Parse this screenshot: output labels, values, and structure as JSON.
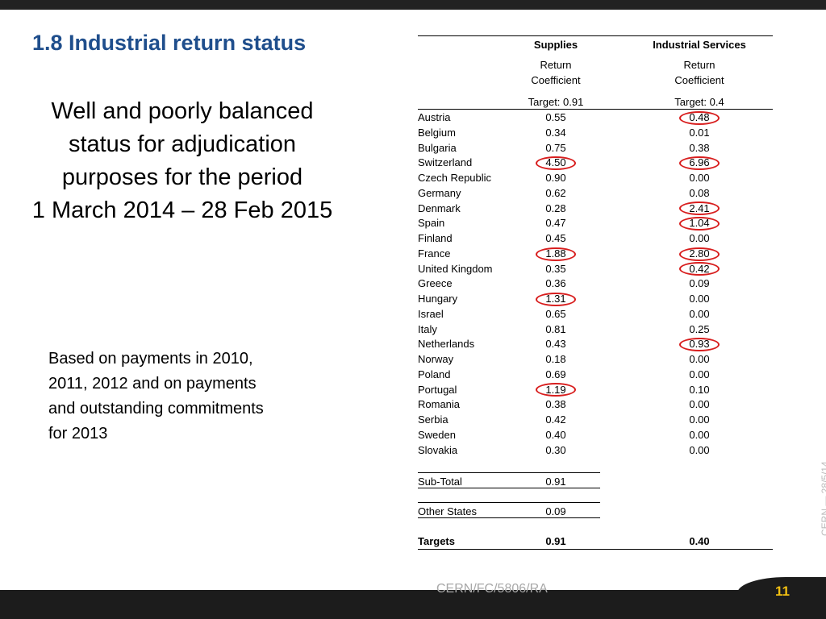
{
  "slide": {
    "title": "1.8 Industrial return status",
    "subtitle_lines": [
      "Well and poorly balanced",
      "status for adjudication",
      "purposes for the period",
      "1 March 2014 – 28 Feb 2015"
    ],
    "note_lines": [
      "Based on payments in 2010,",
      "2011, 2012 and on payments",
      "and outstanding commitments",
      "for 2013"
    ],
    "footer_code": "CERN/FC/5806/RA",
    "page_number": "11",
    "side_text": "CERN — 28/5/14"
  },
  "table": {
    "columns": [
      {
        "group": "Supplies",
        "label_line1": "Return",
        "label_line2": "Coefficient",
        "target": "Target: 0.91"
      },
      {
        "group": "Industrial Services",
        "label_line1": "Return",
        "label_line2": "Coefficient",
        "target": "Target: 0.4"
      }
    ],
    "highlight_color": "#d81e1e",
    "rows": [
      {
        "country": "Austria",
        "supplies": "0.55",
        "services": "0.48",
        "circle_supplies": false,
        "circle_services": true
      },
      {
        "country": "Belgium",
        "supplies": "0.34",
        "services": "0.01",
        "circle_supplies": false,
        "circle_services": false
      },
      {
        "country": "Bulgaria",
        "supplies": "0.75",
        "services": "0.38",
        "circle_supplies": false,
        "circle_services": false
      },
      {
        "country": "Switzerland",
        "supplies": "4.50",
        "services": "6.96",
        "circle_supplies": true,
        "circle_services": true
      },
      {
        "country": "Czech Republic",
        "supplies": "0.90",
        "services": "0.00",
        "circle_supplies": false,
        "circle_services": false
      },
      {
        "country": "Germany",
        "supplies": "0.62",
        "services": "0.08",
        "circle_supplies": false,
        "circle_services": false
      },
      {
        "country": "Denmark",
        "supplies": "0.28",
        "services": "2.41",
        "circle_supplies": false,
        "circle_services": true
      },
      {
        "country": "Spain",
        "supplies": "0.47",
        "services": "1.04",
        "circle_supplies": false,
        "circle_services": true
      },
      {
        "country": "Finland",
        "supplies": "0.45",
        "services": "0.00",
        "circle_supplies": false,
        "circle_services": false
      },
      {
        "country": "France",
        "supplies": "1.88",
        "services": "2.80",
        "circle_supplies": true,
        "circle_services": true
      },
      {
        "country": "United Kingdom",
        "supplies": "0.35",
        "services": "0.42",
        "circle_supplies": false,
        "circle_services": true
      },
      {
        "country": "Greece",
        "supplies": "0.36",
        "services": "0.09",
        "circle_supplies": false,
        "circle_services": false
      },
      {
        "country": "Hungary",
        "supplies": "1.31",
        "services": "0.00",
        "circle_supplies": true,
        "circle_services": false
      },
      {
        "country": "Israel",
        "supplies": "0.65",
        "services": "0.00",
        "circle_supplies": false,
        "circle_services": false
      },
      {
        "country": "Italy",
        "supplies": "0.81",
        "services": "0.25",
        "circle_supplies": false,
        "circle_services": false
      },
      {
        "country": "Netherlands",
        "supplies": "0.43",
        "services": "0.93",
        "circle_supplies": false,
        "circle_services": true
      },
      {
        "country": "Norway",
        "supplies": "0.18",
        "services": "0.00",
        "circle_supplies": false,
        "circle_services": false
      },
      {
        "country": "Poland",
        "supplies": "0.69",
        "services": "0.00",
        "circle_supplies": false,
        "circle_services": false
      },
      {
        "country": "Portugal",
        "supplies": "1.19",
        "services": "0.10",
        "circle_supplies": true,
        "circle_services": false
      },
      {
        "country": "Romania",
        "supplies": "0.38",
        "services": "0.00",
        "circle_supplies": false,
        "circle_services": false
      },
      {
        "country": "Serbia",
        "supplies": "0.42",
        "services": "0.00",
        "circle_supplies": false,
        "circle_services": false
      },
      {
        "country": "Sweden",
        "supplies": "0.40",
        "services": "0.00",
        "circle_supplies": false,
        "circle_services": false
      },
      {
        "country": "Slovakia",
        "supplies": "0.30",
        "services": "0.00",
        "circle_supplies": false,
        "circle_services": false
      }
    ],
    "subtotal": {
      "label": "Sub-Total",
      "supplies": "0.91"
    },
    "other_states": {
      "label": "Other States",
      "supplies": "0.09"
    },
    "targets": {
      "label": "Targets",
      "supplies": "0.91",
      "services": "0.40"
    }
  }
}
